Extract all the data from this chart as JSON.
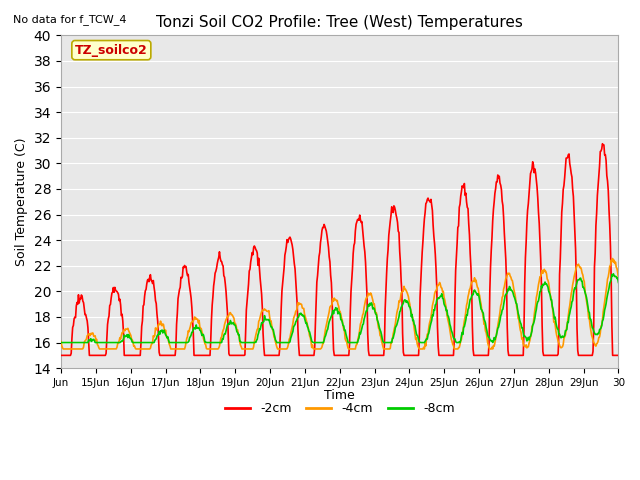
{
  "title": "Tonzi Soil CO2 Profile: Tree (West) Temperatures",
  "subtitle": "No data for f_TCW_4",
  "ylabel": "Soil Temperature (C)",
  "xlabel": "Time",
  "ylim": [
    14,
    40
  ],
  "yticks": [
    14,
    16,
    18,
    20,
    22,
    24,
    26,
    28,
    30,
    32,
    34,
    36,
    38,
    40
  ],
  "legend_label": "TZ_soilco2",
  "legend_box_color": "#ffffcc",
  "legend_box_edge": "#bbaa00",
  "bg_color": "#e8e8e8",
  "line_colors": {
    "-2cm": "#ff0000",
    "-4cm": "#ff9900",
    "-8cm": "#00cc00"
  },
  "tick_labels": [
    "Jun",
    "15Jun",
    "16Jun",
    "17Jun",
    "18Jun",
    "19Jun",
    "20Jun",
    "21Jun",
    "22Jun",
    "23Jun",
    "24Jun",
    "25Jun",
    "26Jun",
    "27Jun",
    "28Jun",
    "29Jun",
    "30"
  ]
}
